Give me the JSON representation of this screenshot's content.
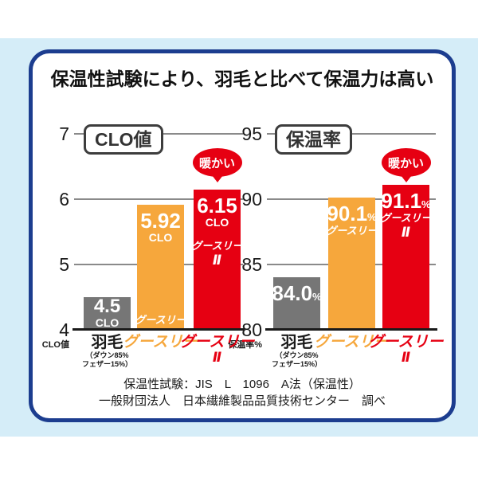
{
  "title": "保温性試験により、羽毛と比べて保温力は高い",
  "footer": {
    "line1": "保温性試験：JIS　L　1096　A法（保温性）",
    "line2": "一般財団法人　日本繊維製品品質技術センター　調べ"
  },
  "colors": {
    "background_blue": "#d5edf8",
    "card_border_navy": "#1c3d8f",
    "bar_gray": "#767676",
    "bar_orange": "#f6a73c",
    "bar_red": "#e60012",
    "gridline_gray": "#8a8a8a"
  },
  "chart_data": [
    {
      "type": "bar",
      "title": "CLO値",
      "ylabel": "CLO値",
      "ylim": [
        4,
        7
      ],
      "yticks": [
        7,
        6,
        5,
        4
      ],
      "categories": [
        "羽毛",
        "グースリー",
        "グースリーⅡ"
      ],
      "bars": [
        {
          "category": "羽毛",
          "category_note": [
            "（ダウン85%",
            "フェザー15%）"
          ],
          "value": 4.5,
          "display": "4.5",
          "unit_below": "CLO",
          "color": "#767676",
          "category_color": "#1a1a1a"
        },
        {
          "category": "グースリー",
          "value": 5.92,
          "display": "5.92",
          "unit_below": "CLO",
          "in_bar_name": "グースリー",
          "name_at_bottom": true,
          "color": "#f6a73c",
          "category_color": "#f6a73c"
        },
        {
          "category": "グースリー",
          "category_line2": "Ⅱ",
          "value": 6.15,
          "display": "6.15",
          "unit_below": "CLO",
          "in_bar_name": "グースリー",
          "in_bar_name_line2": "Ⅱ",
          "bubble": "暖かい",
          "color": "#e60012",
          "category_color": "#e60012"
        }
      ]
    },
    {
      "type": "bar",
      "title": "保温率",
      "ylabel": "保温率%",
      "ylim": [
        80,
        95
      ],
      "yticks": [
        95,
        90,
        85,
        80
      ],
      "categories": [
        "羽毛",
        "グースリー",
        "グースリーⅡ"
      ],
      "bars": [
        {
          "category": "羽毛",
          "category_note": [
            "（ダウン85%",
            "フェザー15%）"
          ],
          "value": 84.0,
          "display": "84.0",
          "suffix": "%",
          "color": "#767676",
          "category_color": "#1a1a1a"
        },
        {
          "category": "グースリー",
          "value": 90.1,
          "display": "90.1",
          "suffix": "%",
          "in_bar_name": "グースリー",
          "color": "#f6a73c",
          "category_color": "#f6a73c"
        },
        {
          "category": "グースリー",
          "category_line2": "Ⅱ",
          "value": 91.1,
          "display": "91.1",
          "suffix": "%",
          "in_bar_name": "グースリー",
          "in_bar_name_line2": "Ⅱ",
          "bubble": "暖かい",
          "color": "#e60012",
          "category_color": "#e60012"
        }
      ]
    }
  ]
}
